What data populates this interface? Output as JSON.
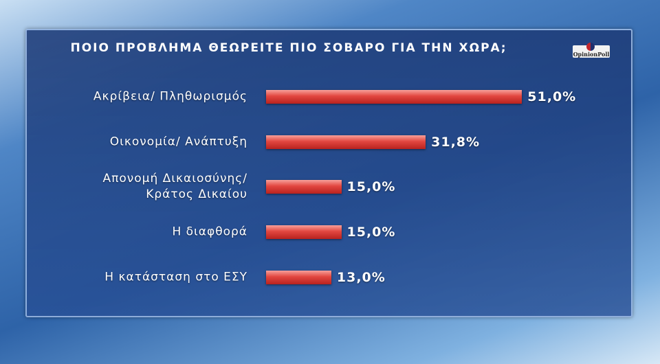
{
  "chart_data": {
    "type": "bar",
    "orientation": "horizontal",
    "title": "ΠΟΙΟ ΠΡΟΒΛΗΜΑ ΘΕΩΡΕΙΤΕ ΠΙΟ ΣΟΒΑΡΟ ΓΙΑ ΤΗΝ ΧΩΡΑ;",
    "logo": "OpinionPoll",
    "categories": [
      "Ακρίβεια/ Πληθωρισμός",
      "Οικονομία/ Ανάπτυξη",
      "Απονομή Δικαιοσύνης/ Κράτος Δικαίου",
      "Η διαφθορά",
      "Η κατάσταση στο ΕΣΥ"
    ],
    "values": [
      51.0,
      31.8,
      15.0,
      15.0,
      13.0
    ],
    "value_labels": [
      "51,0%",
      "31,8%",
      "15,0%",
      "15,0%",
      "13,0%"
    ],
    "color": "#e2463f"
  }
}
